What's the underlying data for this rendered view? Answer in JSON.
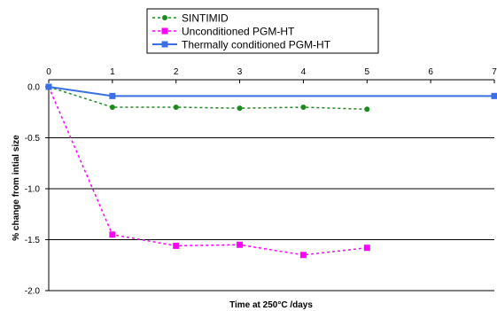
{
  "chart_data": {
    "type": "line",
    "title": "",
    "xlabel": "Time at 250°C /days",
    "ylabel": "% change from intial size",
    "xlim": [
      0,
      7
    ],
    "ylim": [
      -2.0,
      0.0
    ],
    "x_axis_position": "top",
    "x_ticks": [
      0,
      1,
      2,
      3,
      4,
      5,
      6,
      7
    ],
    "y_ticks": [
      0.0,
      -0.5,
      -1.0,
      -1.5,
      -2.0
    ],
    "x_tick_labels": [
      "0",
      "1",
      "2",
      "3",
      "4",
      "5",
      "6",
      "7"
    ],
    "y_tick_labels": [
      "0.0",
      "-0.5",
      "-1.0",
      "-1.5",
      "-2.0"
    ],
    "grid": "horizontal",
    "legend_position": "top-center",
    "series": [
      {
        "name": "SINTIMID",
        "color": "#1e8a1e",
        "line_style": "dotted",
        "marker": "circle",
        "x": [
          0,
          1,
          2,
          3,
          4,
          5
        ],
        "y": [
          0.0,
          -0.2,
          -0.2,
          -0.21,
          -0.2,
          -0.22
        ]
      },
      {
        "name": "Unconditioned PGM-HT",
        "color": "#ff00ff",
        "line_style": "dotted",
        "marker": "square",
        "x": [
          0,
          1,
          2,
          3,
          4,
          5
        ],
        "y": [
          0.0,
          -1.45,
          -1.56,
          -1.55,
          -1.65,
          -1.58
        ]
      },
      {
        "name": "Thermally conditioned PGM-HT",
        "color": "#3a6fe6",
        "line_style": "solid",
        "marker": "square",
        "x": [
          0,
          1,
          7
        ],
        "y": [
          0.0,
          -0.09,
          -0.09
        ]
      }
    ]
  }
}
